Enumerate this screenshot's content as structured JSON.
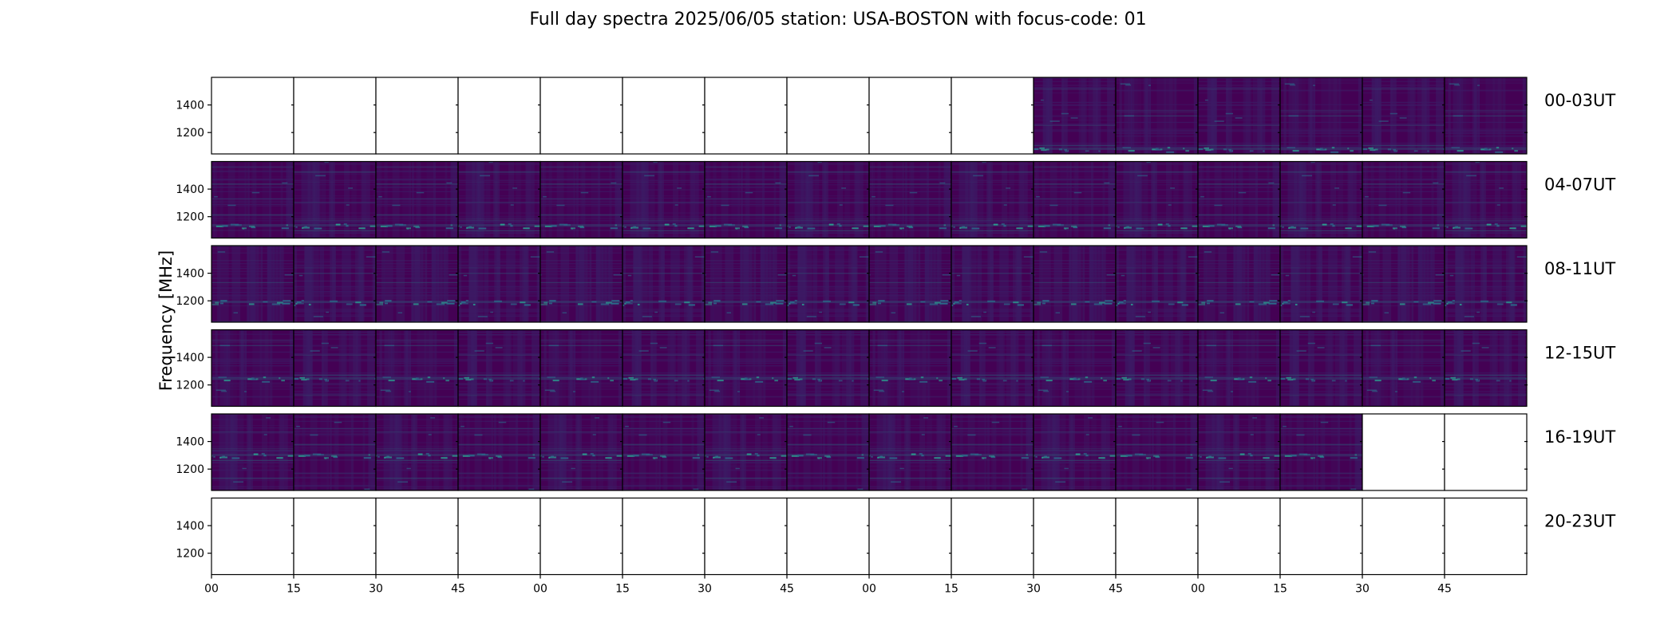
{
  "chart_data": {
    "type": "heatmap",
    "title": "Full day spectra 2025/06/05 station: USA-BOSTON with focus-code: 01",
    "ylabel": "Frequency [MHz]",
    "y_ticks": [
      "1400",
      "1200"
    ],
    "ylim": [
      1045,
      1600
    ],
    "x_ticks": [
      "00",
      "15",
      "30",
      "45",
      "00",
      "15",
      "30",
      "45",
      "00",
      "15",
      "30",
      "45",
      "00",
      "15",
      "30",
      "45"
    ],
    "colormap": [
      "#440154",
      "#3b1a64",
      "#33406e",
      "#2a6a8a",
      "#2a9f8f",
      "#35c0a0"
    ],
    "rows": [
      {
        "label": "00-03UT",
        "filled": [
          false,
          false,
          false,
          false,
          false,
          false,
          false,
          false,
          false,
          false,
          true,
          true,
          true,
          true,
          true,
          true
        ]
      },
      {
        "label": "04-07UT",
        "filled": [
          true,
          true,
          true,
          true,
          true,
          true,
          true,
          true,
          true,
          true,
          true,
          true,
          true,
          true,
          true,
          true
        ]
      },
      {
        "label": "08-11UT",
        "filled": [
          true,
          true,
          true,
          true,
          true,
          true,
          true,
          true,
          true,
          true,
          true,
          true,
          true,
          true,
          true,
          true
        ]
      },
      {
        "label": "12-15UT",
        "filled": [
          true,
          true,
          true,
          true,
          true,
          true,
          true,
          true,
          true,
          true,
          true,
          true,
          true,
          true,
          true,
          true
        ]
      },
      {
        "label": "16-19UT",
        "filled": [
          true,
          true,
          true,
          true,
          true,
          true,
          true,
          true,
          true,
          true,
          true,
          true,
          true,
          true,
          false,
          false
        ]
      },
      {
        "label": "20-23UT",
        "filled": [
          false,
          false,
          false,
          false,
          false,
          false,
          false,
          false,
          false,
          false,
          false,
          false,
          false,
          false,
          false,
          false
        ]
      }
    ]
  }
}
